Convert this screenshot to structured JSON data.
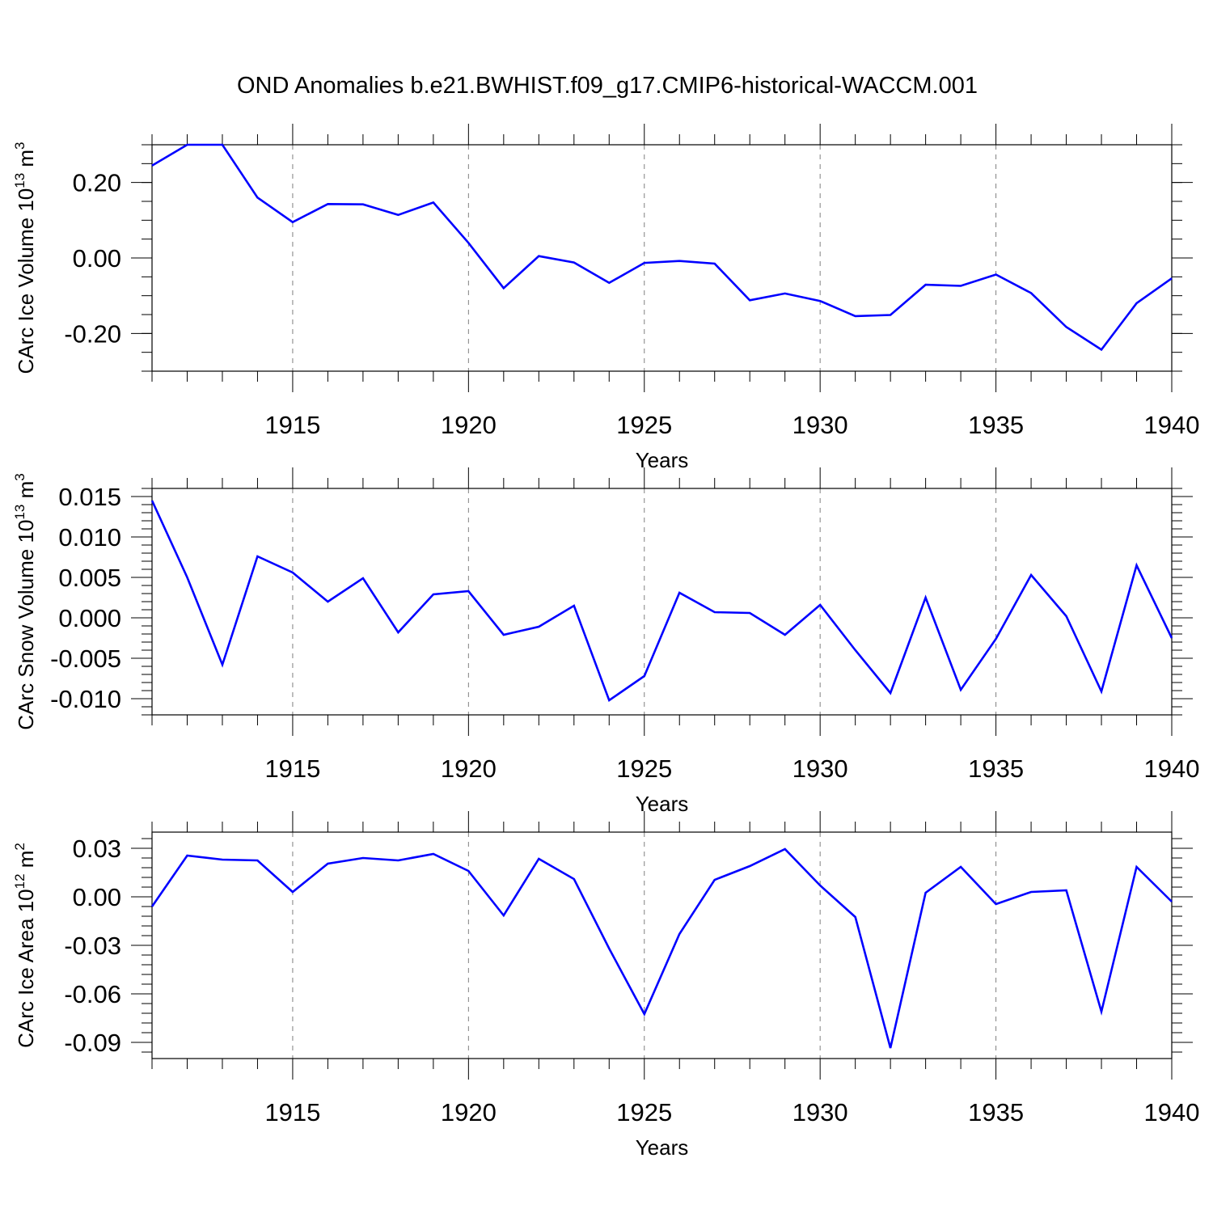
{
  "title": "OND Anomalies b.e21.BWHIST.f09_g17.CMIP6-historical-WACCM.001",
  "colors": {
    "line": "#0000ff",
    "axis": "#000000",
    "grid": "#808080"
  },
  "chart_data": [
    {
      "type": "line",
      "ylabel": "CArc Ice Volume 10",
      "ylabel_exp": "13",
      "ylabel_unit": " m",
      "ylabel_unit_exp": "3",
      "xlabel": "Years",
      "xlim": [
        1911,
        1940
      ],
      "ylim": [
        -0.3,
        0.3
      ],
      "xticks": [
        1915,
        1920,
        1925,
        1930,
        1935,
        1940
      ],
      "yticks": [
        -0.2,
        0.0,
        0.2
      ],
      "ytick_labels": [
        "-0.20",
        "0.00",
        "0.20"
      ],
      "yminor": 0.05,
      "x": [
        1911,
        1912,
        1913,
        1914,
        1915,
        1916,
        1917,
        1918,
        1919,
        1920,
        1921,
        1922,
        1923,
        1924,
        1925,
        1926,
        1927,
        1928,
        1929,
        1930,
        1931,
        1932,
        1933,
        1934,
        1935,
        1936,
        1937,
        1938,
        1939,
        1940
      ],
      "values": [
        0.245,
        0.3,
        0.3,
        0.16,
        0.095,
        0.143,
        0.142,
        0.114,
        0.147,
        0.04,
        -0.08,
        0.005,
        -0.012,
        -0.066,
        -0.013,
        -0.008,
        -0.015,
        -0.112,
        -0.094,
        -0.114,
        -0.154,
        -0.151,
        -0.071,
        -0.074,
        -0.044,
        -0.093,
        -0.183,
        -0.243,
        -0.12,
        -0.054
      ]
    },
    {
      "type": "line",
      "ylabel": "CArc Snow Volume 10",
      "ylabel_exp": "13",
      "ylabel_unit": " m",
      "ylabel_unit_exp": "3",
      "xlabel": "Years",
      "xlim": [
        1911,
        1940
      ],
      "ylim": [
        -0.012,
        0.016
      ],
      "xticks": [
        1915,
        1920,
        1925,
        1930,
        1935,
        1940
      ],
      "yticks": [
        -0.01,
        -0.005,
        0.0,
        0.005,
        0.01,
        0.015
      ],
      "ytick_labels": [
        "-0.010",
        "-0.005",
        "0.000",
        "0.005",
        "0.010",
        "0.015"
      ],
      "yminor": 0.001,
      "x": [
        1911,
        1912,
        1913,
        1914,
        1915,
        1916,
        1917,
        1918,
        1919,
        1920,
        1921,
        1922,
        1923,
        1924,
        1925,
        1926,
        1927,
        1928,
        1929,
        1930,
        1931,
        1932,
        1933,
        1934,
        1935,
        1936,
        1937,
        1938,
        1939,
        1940
      ],
      "values": [
        0.0145,
        0.005,
        -0.0058,
        0.0076,
        0.0056,
        0.002,
        0.0049,
        -0.0018,
        0.0029,
        0.0033,
        -0.0021,
        -0.0011,
        0.0015,
        -0.0102,
        -0.0072,
        0.0031,
        0.0007,
        0.0006,
        -0.0021,
        0.0016,
        -0.004,
        -0.0093,
        0.0025,
        -0.0089,
        -0.0026,
        0.0053,
        0.0002,
        -0.0091,
        0.0065,
        -0.0025
      ]
    },
    {
      "type": "line",
      "ylabel": "CArc Ice Area 10",
      "ylabel_exp": "12",
      "ylabel_unit": " m",
      "ylabel_unit_exp": "2",
      "xlabel": "Years",
      "xlim": [
        1911,
        1940
      ],
      "ylim": [
        -0.1,
        0.04
      ],
      "xticks": [
        1915,
        1920,
        1925,
        1930,
        1935,
        1940
      ],
      "yticks": [
        -0.09,
        -0.06,
        -0.03,
        0.0,
        0.03
      ],
      "ytick_labels": [
        "-0.09",
        "-0.06",
        "-0.03",
        "0.00",
        "0.03"
      ],
      "yminor": 0.006,
      "x": [
        1911,
        1912,
        1913,
        1914,
        1915,
        1916,
        1917,
        1918,
        1919,
        1920,
        1921,
        1922,
        1923,
        1924,
        1925,
        1926,
        1927,
        1928,
        1929,
        1930,
        1931,
        1932,
        1933,
        1934,
        1935,
        1936,
        1937,
        1938,
        1939,
        1940
      ],
      "values": [
        -0.006,
        0.0255,
        0.023,
        0.0225,
        0.003,
        0.0205,
        0.024,
        0.0225,
        0.0265,
        0.016,
        -0.0115,
        0.0235,
        0.011,
        -0.032,
        -0.0725,
        -0.023,
        0.0105,
        0.019,
        0.0295,
        0.007,
        -0.0125,
        -0.0935,
        0.0025,
        0.0185,
        -0.0045,
        0.003,
        0.004,
        -0.071,
        0.0185,
        -0.003
      ]
    }
  ]
}
